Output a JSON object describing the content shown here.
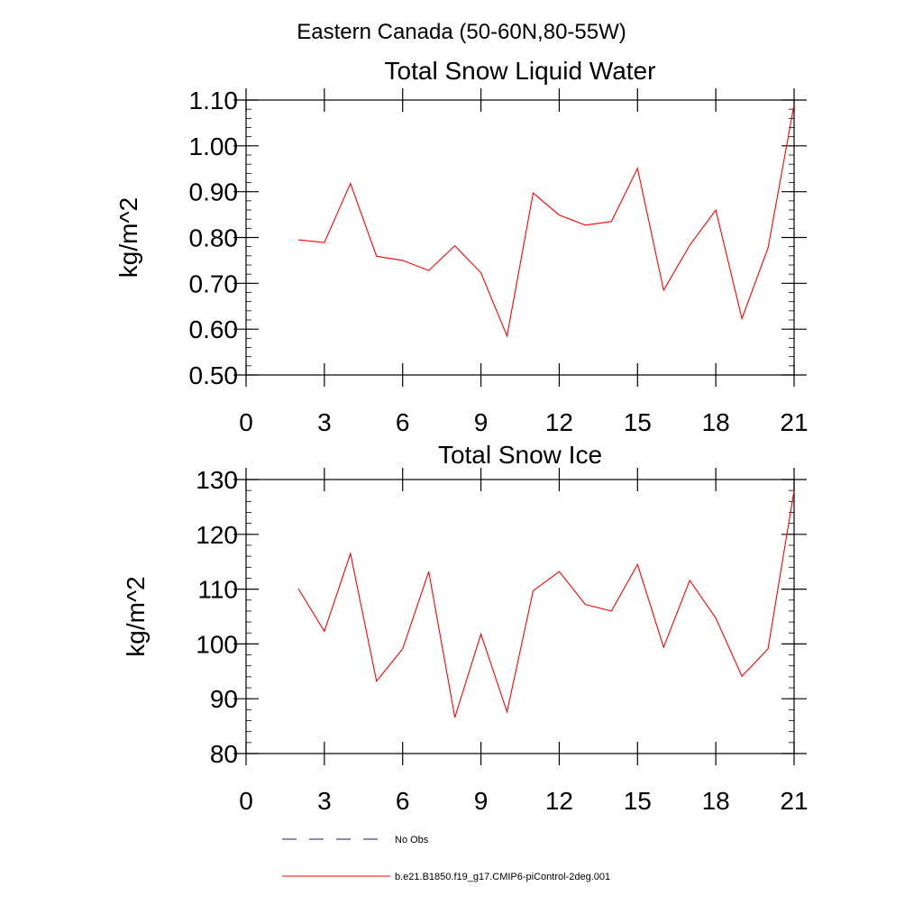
{
  "figure": {
    "suptitle": "Eastern Canada (50-60N,80-55W)"
  },
  "chart_data": [
    {
      "type": "line",
      "title": "Total Snow Liquid Water",
      "xlabel": "",
      "ylabel": "kg/m^2",
      "xlim": [
        0,
        21
      ],
      "ylim": [
        0.5,
        1.1
      ],
      "xticks": [
        0,
        3,
        6,
        9,
        12,
        15,
        18,
        21
      ],
      "xtick_labels": [
        "0",
        "3",
        "6",
        "9",
        "12",
        "15",
        "18",
        "21"
      ],
      "yticks": [
        0.5,
        0.6,
        0.7,
        0.8,
        0.9,
        1.0,
        1.1
      ],
      "ytick_labels": [
        "0.50",
        "0.60",
        "0.70",
        "0.80",
        "0.90",
        "1.00",
        "1.10"
      ],
      "y_minor_step": 0.02,
      "series": [
        {
          "name": "b.e21.B1850.f19_g17.CMIP6-piControl-2deg.001",
          "color": "#ff0000",
          "x": [
            2,
            3,
            4,
            5,
            6,
            7,
            8,
            9,
            10,
            11,
            12,
            13,
            14,
            15,
            16,
            17,
            18,
            19,
            20,
            21
          ],
          "y": [
            0.795,
            0.789,
            0.918,
            0.759,
            0.75,
            0.728,
            0.782,
            0.723,
            0.585,
            0.897,
            0.849,
            0.827,
            0.835,
            0.951,
            0.685,
            0.783,
            0.86,
            0.623,
            0.777,
            1.09
          ]
        }
      ]
    },
    {
      "type": "line",
      "title": "Total Snow Ice",
      "xlabel": "",
      "ylabel": "kg/m^2",
      "xlim": [
        0,
        21
      ],
      "ylim": [
        80,
        130
      ],
      "xticks": [
        0,
        3,
        6,
        9,
        12,
        15,
        18,
        21
      ],
      "xtick_labels": [
        "0",
        "3",
        "6",
        "9",
        "12",
        "15",
        "18",
        "21"
      ],
      "yticks": [
        80,
        90,
        100,
        110,
        120,
        130
      ],
      "ytick_labels": [
        "80",
        "90",
        "100",
        "110",
        "120",
        "130"
      ],
      "y_minor_step": 2,
      "series": [
        {
          "name": "b.e21.B1850.f19_g17.CMIP6-piControl-2deg.001",
          "color": "#ff0000",
          "x": [
            2,
            3,
            4,
            5,
            6,
            7,
            8,
            9,
            10,
            11,
            12,
            13,
            14,
            15,
            16,
            17,
            18,
            19,
            20,
            21
          ],
          "y": [
            110.1,
            102.3,
            116.5,
            93.2,
            99.1,
            113.2,
            86.6,
            101.8,
            87.6,
            109.7,
            113.2,
            107.2,
            106.0,
            114.5,
            99.4,
            111.6,
            104.7,
            94.1,
            99.1,
            128.0
          ]
        }
      ]
    }
  ],
  "legend": {
    "placement": "bottom",
    "entries": [
      {
        "label": "No Obs",
        "style": "dashed",
        "color": "#1a1a6e"
      },
      {
        "label": "b.e21.B1850.f19_g17.CMIP6-piControl-2deg.001",
        "style": "solid",
        "color": "#ff0000"
      }
    ]
  }
}
